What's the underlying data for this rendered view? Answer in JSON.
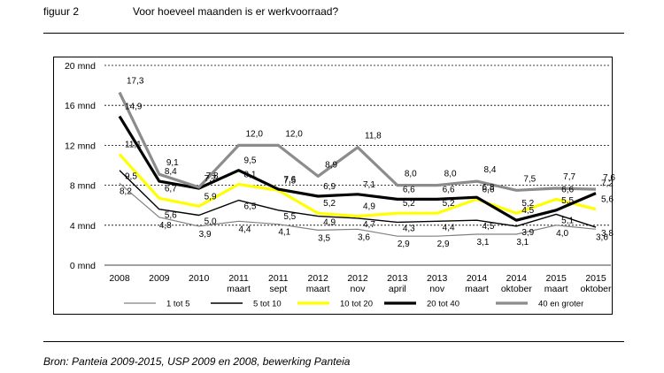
{
  "header": {
    "figure_label": "figuur 2",
    "title": "Voor hoeveel maanden is er werkvoorraad?"
  },
  "source": "Bron: Panteia 2009-2015, USP 2009 en 2008, bewerking Panteia",
  "chart_data": {
    "type": "line",
    "title": "Voor hoeveel maanden is er werkvoorraad?",
    "ylabel": "",
    "xlabel": "",
    "ylim": [
      0,
      20
    ],
    "yticks": [
      "0 mnd",
      "4 mnd",
      "8 mnd",
      "12 mnd",
      "16 mnd",
      "20 mnd"
    ],
    "grid": "horizontal dashed",
    "legend": "bottom",
    "categories": [
      [
        "2008",
        ""
      ],
      [
        "2009",
        ""
      ],
      [
        "2010",
        ""
      ],
      [
        "2011",
        "maart"
      ],
      [
        "2011",
        "sept"
      ],
      [
        "2012",
        "maart"
      ],
      [
        "2012",
        "nov"
      ],
      [
        "2013",
        "april"
      ],
      [
        "2013",
        "nov"
      ],
      [
        "2014",
        "maart"
      ],
      [
        "2014",
        "oktober"
      ],
      [
        "2015",
        "maart"
      ],
      [
        "2015",
        "oktober"
      ]
    ],
    "series": [
      {
        "name": "1 tot 5",
        "color": "#808080",
        "width": 1.2,
        "values": [
          8.2,
          4.8,
          3.9,
          4.4,
          4.1,
          3.5,
          3.6,
          2.9,
          2.9,
          3.1,
          3.1,
          4.0,
          3.6
        ],
        "labels": [
          "8,2",
          "4,8",
          "3,9",
          "4,4",
          "4,1",
          "3,5",
          "3,6",
          "2,9",
          "2,9",
          "3,1",
          "3,1",
          "4,0",
          "3,6"
        ]
      },
      {
        "name": "5 tot 10",
        "color": "#000000",
        "width": 1.4,
        "values": [
          9.5,
          5.6,
          5.0,
          6.5,
          5.5,
          4.9,
          4.7,
          4.3,
          4.4,
          4.5,
          3.9,
          5.1,
          3.8
        ],
        "labels": [
          "9,5",
          "5,6",
          "5,0",
          "6,5",
          "5,5",
          "4,9",
          "4,7",
          "4,3",
          "4,4",
          "4,5",
          "3,9",
          "5,1",
          "3,8"
        ]
      },
      {
        "name": "10 tot 20",
        "color": "#ffff00",
        "width": 3.2,
        "values": [
          11.1,
          6.7,
          5.9,
          8.1,
          7.5,
          5.2,
          4.9,
          5.2,
          5.2,
          6.6,
          5.2,
          6.6,
          5.6
        ],
        "labels": [
          "11,1",
          "6,7",
          "5,9",
          "8,1",
          "7,5",
          "5,2",
          "4,9",
          "5,2",
          "5,2",
          "6,6",
          "5,2",
          "6,6",
          "5,6"
        ]
      },
      {
        "name": "20 tot 40",
        "color": "#000000",
        "width": 3.2,
        "values": [
          14.9,
          8.4,
          7.7,
          9.5,
          7.6,
          6.9,
          7.1,
          6.6,
          6.6,
          6.8,
          4.5,
          5.5,
          7.2
        ],
        "labels": [
          "14,9",
          "8,4",
          "7,7",
          "9,5",
          "7,6",
          "6,9",
          "7,1",
          "6,6",
          "6,6",
          "6,8",
          "4,5",
          "5,5",
          "7,2"
        ]
      },
      {
        "name": "40 en groter",
        "color": "#8c8c8c",
        "width": 3.2,
        "values": [
          17.3,
          9.1,
          7.8,
          12.0,
          12.0,
          8.9,
          11.8,
          8.0,
          8.0,
          8.4,
          7.5,
          7.7,
          7.6
        ],
        "labels": [
          "17,3",
          "9,1",
          "7,8",
          "12,0",
          "12,0",
          "8,9",
          "11,8",
          "8,0",
          "8,0",
          "8,4",
          "7,5",
          "7,7",
          "7,6"
        ]
      }
    ]
  }
}
